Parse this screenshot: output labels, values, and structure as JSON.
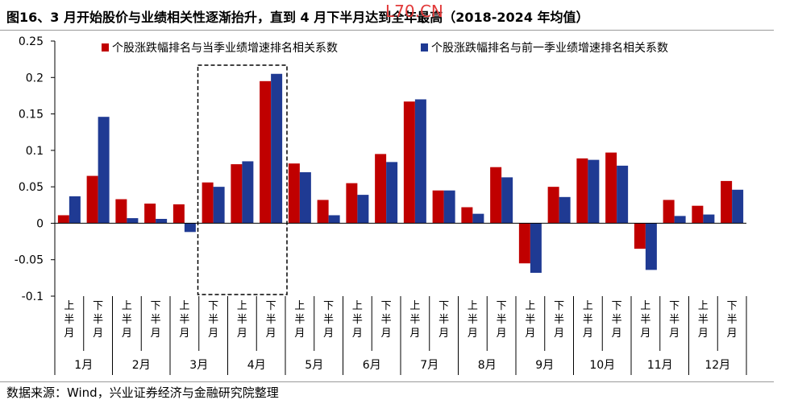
{
  "title": "图16、3 月开始股价与业绩相关性逐渐抬升，直到 4 月下半月达到全年最高（2018-2024 年均值）",
  "watermark": "L70.CN",
  "source": "数据来源：Wind，兴业证券经济与金融研究院整理",
  "colors": {
    "series1": "#c00000",
    "series2": "#1f3a93",
    "axis": "#000000",
    "highlight": "#000000"
  },
  "chart_data": {
    "type": "bar",
    "ylim": [
      -0.1,
      0.25
    ],
    "yticks": [
      -0.1,
      -0.05,
      0,
      0.05,
      0.1,
      0.15,
      0.2,
      0.25
    ],
    "ytick_labels": [
      "-0.1",
      "-0.05",
      "0",
      "0.05",
      "0.1",
      "0.15",
      "0.2",
      "0.25"
    ],
    "legend_position": "top",
    "grid": false,
    "categories": [
      "上半月",
      "下半月",
      "上半月",
      "下半月",
      "上半月",
      "下半月",
      "上半月",
      "下半月",
      "上半月",
      "下半月",
      "上半月",
      "下半月",
      "上半月",
      "下半月",
      "上半月",
      "下半月",
      "上半月",
      "下半月",
      "上半月",
      "下半月",
      "上半月",
      "下半月",
      "上半月",
      "下半月"
    ],
    "months": [
      "1月",
      "2月",
      "3月",
      "4月",
      "5月",
      "6月",
      "7月",
      "8月",
      "9月",
      "10月",
      "11月",
      "12月"
    ],
    "series": [
      {
        "name": "个股涨跌幅排名与当季业绩增速排名相关系数",
        "values": [
          0.011,
          0.065,
          0.033,
          0.027,
          0.026,
          0.056,
          0.081,
          0.195,
          0.082,
          0.032,
          0.055,
          0.095,
          0.167,
          0.045,
          0.022,
          0.077,
          -0.055,
          0.05,
          0.089,
          0.097,
          -0.035,
          0.032,
          0.024,
          0.058
        ]
      },
      {
        "name": "个股涨跌幅排名与前一季业绩增速排名相关系数",
        "values": [
          0.037,
          0.146,
          0.007,
          0.006,
          -0.012,
          0.05,
          0.085,
          0.205,
          0.07,
          0.011,
          0.039,
          0.084,
          0.17,
          0.045,
          0.013,
          0.063,
          -0.068,
          0.036,
          0.087,
          0.079,
          -0.064,
          0.01,
          0.012,
          0.046
        ]
      }
    ],
    "highlight_month": "4月"
  }
}
